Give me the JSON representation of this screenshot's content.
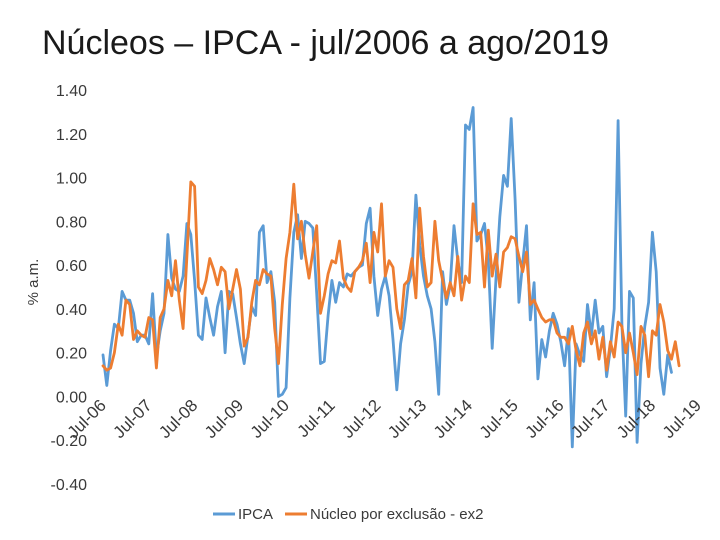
{
  "chart_data": {
    "type": "line",
    "title": "Núcleos – IPCA   - jul/2006 a ago/2019",
    "xlabel": "",
    "ylabel": "% a.m.",
    "ylim": [
      -0.4,
      1.4
    ],
    "yticks": [
      1.4,
      1.2,
      1.0,
      0.8,
      0.6,
      0.4,
      0.2,
      0.0,
      -0.2,
      -0.4
    ],
    "ytick_labels": [
      "1.40",
      "1.20",
      "1.00",
      "0.80",
      "0.60",
      "0.40",
      "0.20",
      "0.00",
      "-0.20",
      "-0.40"
    ],
    "xlim": [
      0,
      157
    ],
    "xticks": [
      0,
      12,
      24,
      36,
      48,
      60,
      72,
      84,
      96,
      108,
      120,
      132,
      144,
      156
    ],
    "xtick_labels": [
      "Jul-06",
      "Jul-07",
      "Jul-08",
      "Jul-09",
      "Jul-10",
      "Jul-11",
      "Jul-12",
      "Jul-13",
      "Jul-14",
      "Jul-15",
      "Jul-16",
      "Jul-17",
      "Jul-18",
      "Jul-19"
    ],
    "legend_position": "bottom",
    "colors": {
      "IPCA": "#5b9bd5",
      "Núcleo por exclusão - ex2": "#ed7d31"
    },
    "series": [
      {
        "name": "IPCA",
        "values": [
          0.19,
          0.05,
          0.21,
          0.33,
          0.31,
          0.48,
          0.44,
          0.44,
          0.38,
          0.25,
          0.28,
          0.28,
          0.24,
          0.47,
          0.18,
          0.3,
          0.38,
          0.74,
          0.54,
          0.49,
          0.48,
          0.55,
          0.79,
          0.74,
          0.53,
          0.28,
          0.26,
          0.45,
          0.36,
          0.28,
          0.41,
          0.48,
          0.2,
          0.48,
          0.47,
          0.36,
          0.24,
          0.15,
          0.28,
          0.41,
          0.37,
          0.75,
          0.78,
          0.52,
          0.57,
          0.43,
          0.0,
          0.01,
          0.04,
          0.45,
          0.75,
          0.83,
          0.63,
          0.8,
          0.79,
          0.77,
          0.47,
          0.15,
          0.16,
          0.37,
          0.53,
          0.43,
          0.52,
          0.5,
          0.56,
          0.55,
          0.57,
          0.59,
          0.6,
          0.79,
          0.86,
          0.55,
          0.37,
          0.49,
          0.55,
          0.46,
          0.26,
          0.03,
          0.24,
          0.35,
          0.51,
          0.57,
          0.92,
          0.69,
          0.55,
          0.46,
          0.4,
          0.25,
          0.01,
          0.57,
          0.42,
          0.51,
          0.78,
          0.62,
          0.52,
          1.24,
          1.22,
          1.32,
          0.71,
          0.74,
          0.79,
          0.62,
          0.22,
          0.54,
          0.82,
          1.01,
          0.96,
          1.27,
          0.9,
          0.43,
          0.61,
          0.78,
          0.35,
          0.52,
          0.08,
          0.26,
          0.18,
          0.3,
          0.38,
          0.33,
          0.25,
          0.14,
          0.31,
          -0.23,
          0.24,
          0.19,
          0.16,
          0.42,
          0.28,
          0.44,
          0.29,
          0.32,
          0.09,
          0.22,
          0.4,
          1.26,
          0.33,
          -0.09,
          0.48,
          0.45,
          -0.21,
          0.15,
          0.32,
          0.43,
          0.75,
          0.57,
          0.13,
          0.01,
          0.19,
          0.11
        ]
      },
      {
        "name": "Núcleo por exclusão - ex2",
        "values": [
          0.14,
          0.12,
          0.13,
          0.2,
          0.33,
          0.28,
          0.44,
          0.42,
          0.26,
          0.3,
          0.28,
          0.27,
          0.36,
          0.35,
          0.13,
          0.36,
          0.4,
          0.53,
          0.46,
          0.62,
          0.44,
          0.31,
          0.64,
          0.98,
          0.96,
          0.5,
          0.47,
          0.53,
          0.63,
          0.58,
          0.51,
          0.59,
          0.57,
          0.4,
          0.49,
          0.58,
          0.49,
          0.23,
          0.27,
          0.43,
          0.53,
          0.51,
          0.58,
          0.56,
          0.55,
          0.31,
          0.15,
          0.42,
          0.63,
          0.75,
          0.97,
          0.72,
          0.8,
          0.65,
          0.54,
          0.66,
          0.78,
          0.38,
          0.46,
          0.56,
          0.62,
          0.61,
          0.71,
          0.54,
          0.5,
          0.48,
          0.57,
          0.59,
          0.62,
          0.7,
          0.52,
          0.75,
          0.66,
          0.88,
          0.55,
          0.62,
          0.59,
          0.4,
          0.31,
          0.51,
          0.53,
          0.63,
          0.45,
          0.86,
          0.64,
          0.5,
          0.52,
          0.8,
          0.62,
          0.53,
          0.45,
          0.52,
          0.46,
          0.64,
          0.44,
          0.55,
          0.52,
          0.88,
          0.74,
          0.75,
          0.5,
          0.76,
          0.55,
          0.65,
          0.5,
          0.66,
          0.68,
          0.73,
          0.72,
          0.64,
          0.57,
          0.66,
          0.42,
          0.44,
          0.4,
          0.36,
          0.34,
          0.35,
          0.35,
          0.29,
          0.27,
          0.27,
          0.24,
          0.32,
          0.21,
          0.14,
          0.29,
          0.34,
          0.24,
          0.3,
          0.17,
          0.27,
          0.12,
          0.25,
          0.18,
          0.34,
          0.32,
          0.2,
          0.29,
          0.2,
          0.1,
          0.32,
          0.28,
          0.09,
          0.3,
          0.28,
          0.42,
          0.34,
          0.21,
          0.17,
          0.25,
          0.14
        ]
      }
    ]
  }
}
